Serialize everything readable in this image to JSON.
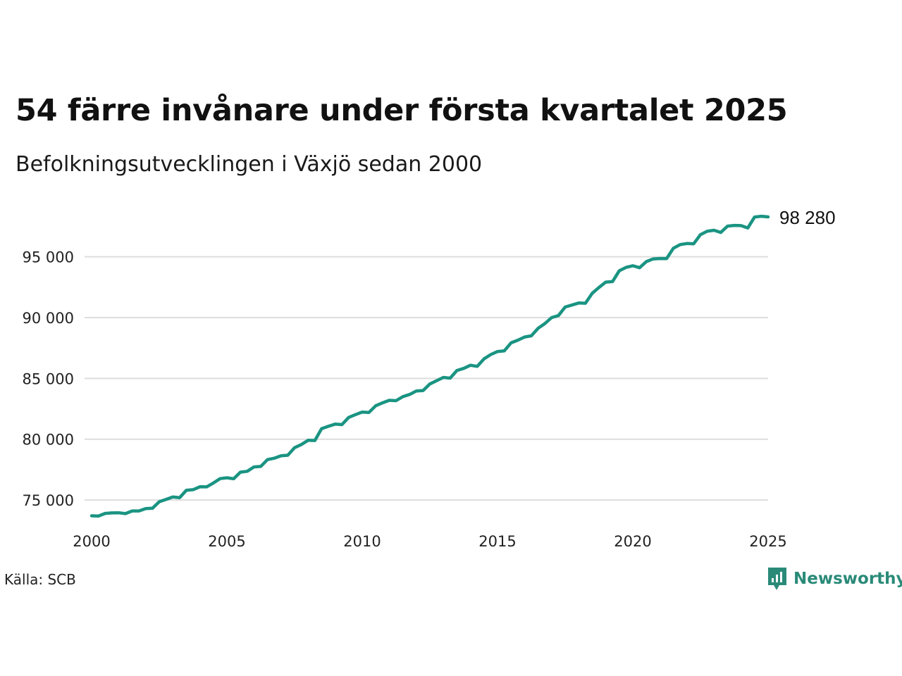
{
  "header": {
    "title": "54 färre invånare under första kvartalet 2025",
    "subtitle": "Befolkningsutvecklingen i Växjö sedan 2000"
  },
  "footer": {
    "source": "Källa: SCB",
    "brand": "Newsworthy"
  },
  "colors": {
    "line": "#1a9482",
    "grid": "#dddddd",
    "brand": "#2a8a78"
  },
  "chart_data": {
    "type": "line",
    "title": "54 färre invånare under första kvartalet 2025",
    "subtitle": "Befolkningsutvecklingen i Växjö sedan 2000",
    "xlabel": "",
    "ylabel": "",
    "x_ticks": [
      "2000",
      "2005",
      "2010",
      "2015",
      "2020",
      "2025"
    ],
    "y_ticks": [
      "75 000",
      "80 000",
      "85 000",
      "90 000",
      "95 000"
    ],
    "y_tick_values": [
      75000,
      80000,
      85000,
      90000,
      95000
    ],
    "xlim": [
      2000,
      2025
    ],
    "ylim": [
      72400,
      99900
    ],
    "grid": "horizontal",
    "end_label": "98 280",
    "series": [
      {
        "x": [
          2000.0,
          2000.25,
          2000.5,
          2000.75,
          2001.0,
          2001.25,
          2001.5,
          2001.75,
          2002.0,
          2002.25,
          2002.5,
          2002.75,
          2003.0,
          2003.25,
          2003.5,
          2003.75,
          2004.0,
          2004.25,
          2004.5,
          2004.75,
          2005.0,
          2005.25,
          2005.5,
          2005.75,
          2006.0,
          2006.25,
          2006.5,
          2006.75,
          2007.0,
          2007.25,
          2007.5,
          2007.75,
          2008.0,
          2008.25,
          2008.5,
          2008.75,
          2009.0,
          2009.25,
          2009.5,
          2009.75,
          2010.0,
          2010.25,
          2010.5,
          2010.75,
          2011.0,
          2011.25,
          2011.5,
          2011.75,
          2012.0,
          2012.25,
          2012.5,
          2012.75,
          2013.0,
          2013.25,
          2013.5,
          2013.75,
          2014.0,
          2014.25,
          2014.5,
          2014.75,
          2015.0,
          2015.25,
          2015.5,
          2015.75,
          2016.0,
          2016.25,
          2016.5,
          2016.75,
          2017.0,
          2017.25,
          2017.5,
          2017.75,
          2018.0,
          2018.25,
          2018.5,
          2018.75,
          2019.0,
          2019.25,
          2019.5,
          2019.75,
          2020.0,
          2020.25,
          2020.5,
          2020.75,
          2021.0,
          2021.25,
          2021.5,
          2021.75,
          2022.0,
          2022.25,
          2022.5,
          2022.75,
          2023.0,
          2023.25,
          2023.5,
          2023.75,
          2024.0,
          2024.25,
          2024.5,
          2024.75,
          2025.0
        ],
        "values": [
          73700,
          73680,
          73900,
          73940,
          73950,
          73880,
          74100,
          74100,
          74300,
          74320,
          74860,
          75050,
          75250,
          75190,
          75800,
          75850,
          76090,
          76080,
          76400,
          76760,
          76830,
          76750,
          77290,
          77360,
          77720,
          77760,
          78320,
          78440,
          78640,
          78680,
          79300,
          79560,
          79910,
          79890,
          80870,
          81060,
          81240,
          81200,
          81790,
          82020,
          82230,
          82200,
          82750,
          82990,
          83200,
          83170,
          83500,
          83680,
          83960,
          84000,
          84540,
          84810,
          85080,
          85020,
          85650,
          85820,
          86080,
          85990,
          86600,
          86960,
          87210,
          87260,
          87920,
          88140,
          88400,
          88500,
          89120,
          89510,
          90000,
          90160,
          90870,
          91030,
          91200,
          91180,
          92000,
          92480,
          92920,
          92960,
          93850,
          94130,
          94260,
          94100,
          94600,
          94820,
          94860,
          94850,
          95700,
          96000,
          96090,
          96070,
          96820,
          97100,
          97180,
          97000,
          97520,
          97580,
          97560,
          97370,
          98270,
          98330,
          98280
        ]
      }
    ]
  }
}
